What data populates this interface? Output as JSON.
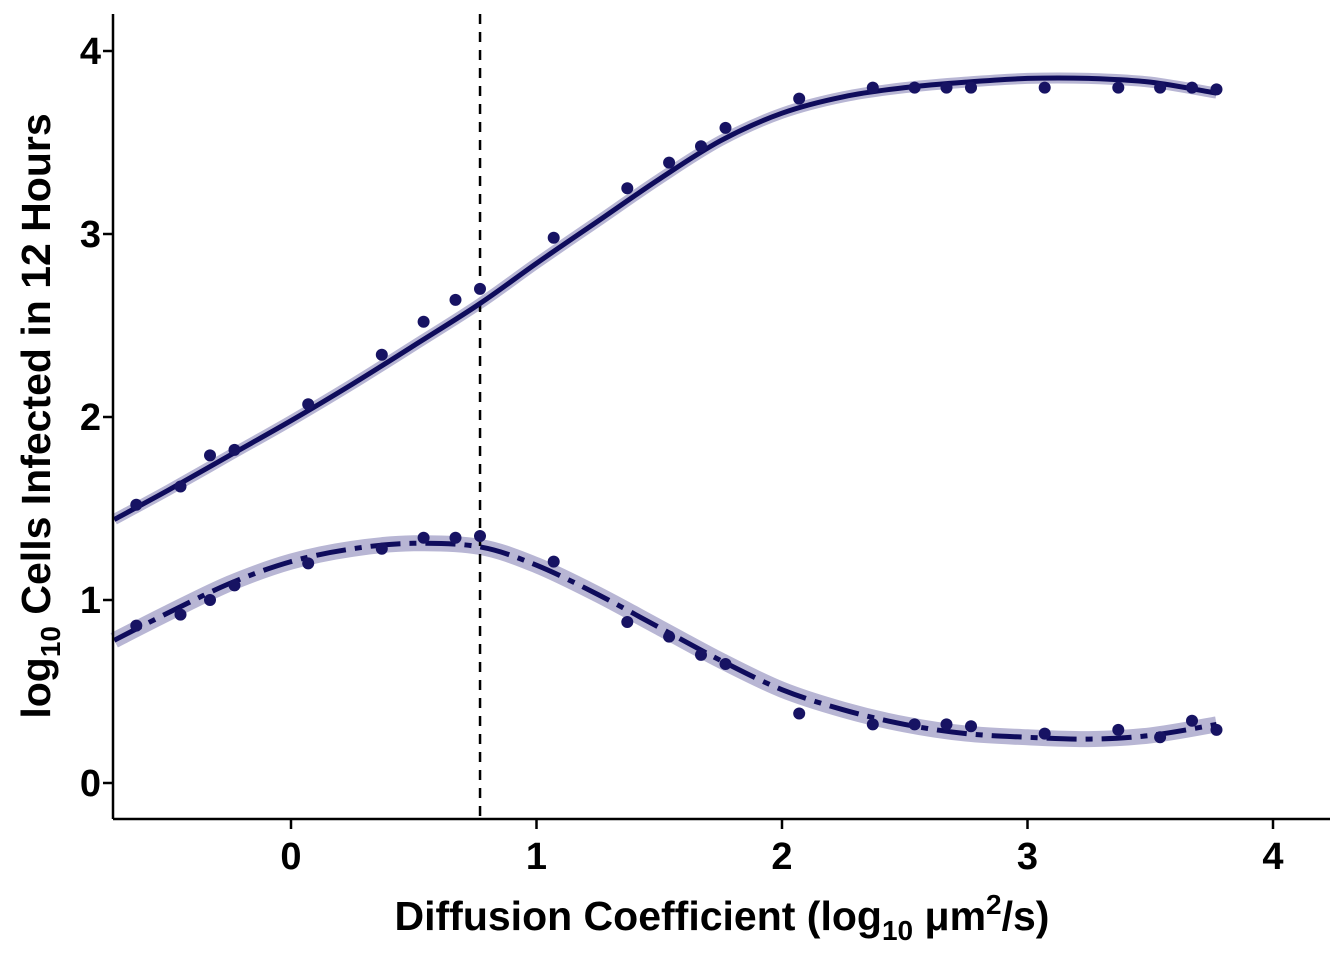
{
  "chart_data": {
    "type": "scatter",
    "xlabel": {
      "prefix": "Diffusion Coefficient (log",
      "sub": "10",
      "mid": " μm",
      "sup": "2",
      "suffix": "/s)"
    },
    "ylabel": {
      "prefix": "log",
      "sub": "10",
      "suffix": " Cells Infected in 12 Hours"
    },
    "xlim": [
      -0.72,
      4.24
    ],
    "ylim": [
      -0.2,
      4.2
    ],
    "x_ticks": [
      0,
      1,
      2,
      3,
      4
    ],
    "y_ticks": [
      0,
      1,
      2,
      3,
      4
    ],
    "grid": false,
    "reference_line": {
      "x": 0.77,
      "style": "dashed"
    },
    "colors": {
      "points": "#171363",
      "fit": "#0f0c5c",
      "band": "#b8b6d4"
    },
    "series": [
      {
        "line_style": "solid",
        "points": [
          [
            -0.63,
            1.52
          ],
          [
            -0.45,
            1.62
          ],
          [
            -0.33,
            1.79
          ],
          [
            -0.23,
            1.82
          ],
          [
            0.07,
            2.07
          ],
          [
            0.37,
            2.34
          ],
          [
            0.54,
            2.52
          ],
          [
            0.67,
            2.64
          ],
          [
            0.77,
            2.7
          ],
          [
            1.07,
            2.98
          ],
          [
            1.37,
            3.25
          ],
          [
            1.54,
            3.39
          ],
          [
            1.67,
            3.48
          ],
          [
            1.77,
            3.58
          ],
          [
            2.07,
            3.74
          ],
          [
            2.37,
            3.8
          ],
          [
            2.54,
            3.8
          ],
          [
            2.67,
            3.8
          ],
          [
            2.77,
            3.8
          ],
          [
            3.07,
            3.8
          ],
          [
            3.37,
            3.8
          ],
          [
            3.54,
            3.8
          ],
          [
            3.67,
            3.8
          ],
          [
            3.77,
            3.79
          ]
        ],
        "fit": [
          [
            -0.72,
            1.44
          ],
          [
            -0.5,
            1.6
          ],
          [
            -0.25,
            1.79
          ],
          [
            0.0,
            1.98
          ],
          [
            0.25,
            2.18
          ],
          [
            0.5,
            2.39
          ],
          [
            0.77,
            2.62
          ],
          [
            1.0,
            2.84
          ],
          [
            1.25,
            3.07
          ],
          [
            1.5,
            3.3
          ],
          [
            1.75,
            3.51
          ],
          [
            2.0,
            3.66
          ],
          [
            2.25,
            3.75
          ],
          [
            2.5,
            3.8
          ],
          [
            2.75,
            3.83
          ],
          [
            3.0,
            3.85
          ],
          [
            3.25,
            3.85
          ],
          [
            3.5,
            3.83
          ],
          [
            3.77,
            3.77
          ]
        ]
      },
      {
        "line_style": "dashdot",
        "points": [
          [
            -0.63,
            0.86
          ],
          [
            -0.45,
            0.92
          ],
          [
            -0.33,
            1.0
          ],
          [
            -0.23,
            1.08
          ],
          [
            0.07,
            1.2
          ],
          [
            0.37,
            1.28
          ],
          [
            0.54,
            1.34
          ],
          [
            0.67,
            1.34
          ],
          [
            0.77,
            1.35
          ],
          [
            1.07,
            1.21
          ],
          [
            1.37,
            0.88
          ],
          [
            1.54,
            0.8
          ],
          [
            1.67,
            0.7
          ],
          [
            1.77,
            0.65
          ],
          [
            2.07,
            0.38
          ],
          [
            2.37,
            0.32
          ],
          [
            2.54,
            0.32
          ],
          [
            2.67,
            0.32
          ],
          [
            2.77,
            0.31
          ],
          [
            3.07,
            0.27
          ],
          [
            3.37,
            0.29
          ],
          [
            3.54,
            0.25
          ],
          [
            3.67,
            0.34
          ],
          [
            3.77,
            0.29
          ]
        ],
        "fit": [
          [
            -0.72,
            0.78
          ],
          [
            -0.5,
            0.93
          ],
          [
            -0.25,
            1.09
          ],
          [
            0.0,
            1.21
          ],
          [
            0.25,
            1.28
          ],
          [
            0.5,
            1.31
          ],
          [
            0.77,
            1.29
          ],
          [
            1.0,
            1.19
          ],
          [
            1.25,
            1.03
          ],
          [
            1.5,
            0.85
          ],
          [
            1.75,
            0.67
          ],
          [
            2.0,
            0.51
          ],
          [
            2.25,
            0.4
          ],
          [
            2.5,
            0.32
          ],
          [
            2.75,
            0.27
          ],
          [
            3.0,
            0.25
          ],
          [
            3.25,
            0.24
          ],
          [
            3.5,
            0.26
          ],
          [
            3.77,
            0.32
          ]
        ]
      }
    ]
  }
}
